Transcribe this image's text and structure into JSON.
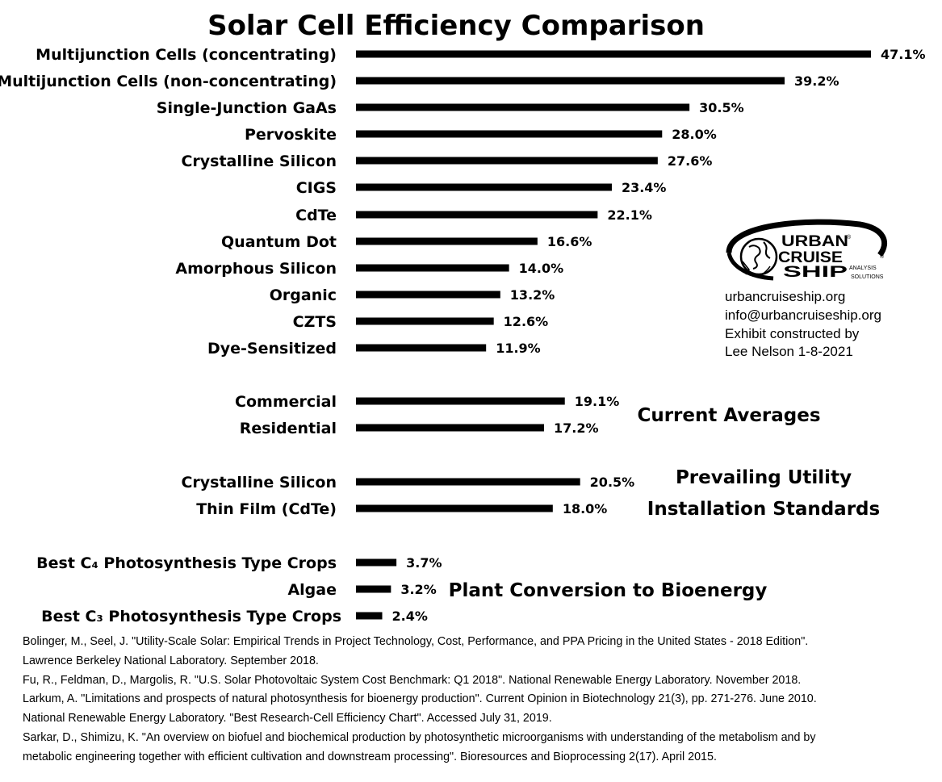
{
  "chart_data": {
    "type": "bar",
    "orientation": "horizontal",
    "title": "Solar Cell Efficiency Comparison",
    "value_suffix": "%",
    "groups": [
      {
        "label": "",
        "categories": [
          "Multijunction Cells (concentrating)",
          "Multijunction Cells (non-concentrating)",
          "Single-Junction GaAs",
          "Pervoskite",
          "Crystalline Silicon",
          "CIGS",
          "CdTe",
          "Quantum Dot",
          "Amorphous Silicon",
          "Organic",
          "CZTS",
          "Dye-Sensitized"
        ],
        "values": [
          47.1,
          39.2,
          30.5,
          28.0,
          27.6,
          23.4,
          22.1,
          16.6,
          14.0,
          13.2,
          12.6,
          11.9
        ]
      },
      {
        "label": [
          "Current Averages"
        ],
        "categories": [
          "Commercial",
          "Residential"
        ],
        "values": [
          19.1,
          17.2
        ]
      },
      {
        "label": [
          "Prevailing Utility",
          "Installation Standards"
        ],
        "categories": [
          "Crystalline Silicon",
          "Thin Film (CdTe)"
        ],
        "values": [
          20.5,
          18.0
        ]
      },
      {
        "label": [
          "Plant Conversion to Bioenergy"
        ],
        "categories": [
          "Best C₄ Photosynthesis Type Crops",
          "Algae",
          "Best C₃ Photosynthesis Type Crops"
        ],
        "values": [
          3.7,
          3.2,
          2.4
        ]
      }
    ],
    "bar_color": "#000000"
  },
  "logo": {
    "line1": "URBAN",
    "line2": "CRUISE",
    "line3": "SHIP",
    "tag1": "ANALYSIS",
    "tag2": "SOLUTIONS",
    "icon": "globe-ship-icon"
  },
  "info_lines": [
    "urbancruiseship.org",
    "info@urbancruiseship.org",
    "Exhibit constructed by",
    "Lee Nelson 1-8-2021"
  ],
  "references": [
    "Bolinger, M., Seel, J. \"Utility-Scale Solar: Empirical Trends in Project Technology, Cost, Performance, and PPA Pricing in the United States - 2018 Edition\".",
    "Lawrence Berkeley National Laboratory. September 2018.",
    "Fu, R., Feldman, D., Margolis, R. \"U.S. Solar Photovoltaic System Cost Benchmark: Q1 2018\". National Renewable Energy Laboratory. November 2018.",
    "Larkum, A. \"Limitations and prospects of natural photosynthesis for bioenergy production\". Current Opinion in Biotechnology 21(3), pp. 271-276. June 2010.",
    "National Renewable Energy Laboratory. \"Best Research-Cell Efficiency Chart\". Accessed July 31, 2019.",
    "Sarkar, D., Shimizu, K. \"An overview on biofuel and biochemical production by photosynthetic microorganisms with understanding of the metabolism and by",
    "metabolic engineering together with efficient cultivation and downstream processing\". Bioresources and Bioprocessing 2(17). April 2015."
  ]
}
